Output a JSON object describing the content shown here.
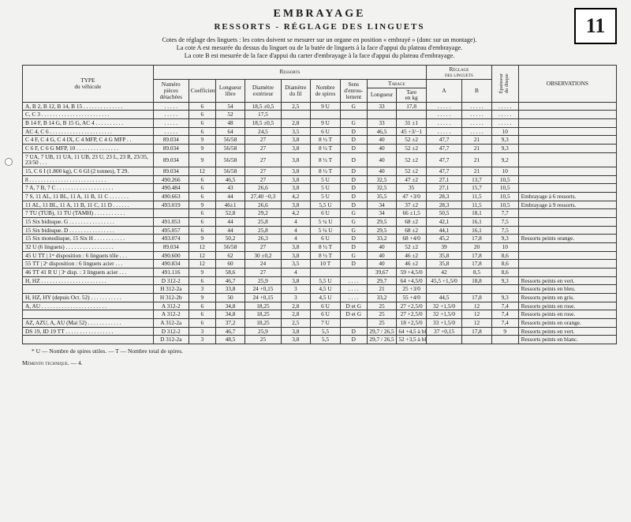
{
  "page_number": "11",
  "title": "EMBRAYAGE",
  "subtitle": "RESSORTS - RÉGLAGE DES LINGUETS",
  "intro_line1": "Cotes de réglage des linguets : les cotes doivent se mesurer sur un organe en position « embrayé » (donc sur un montage).",
  "intro_line2": "La cote A est mesurée du dessus du linguet ou de la butée de linguets à la face d'appui du plateau d'embrayage.",
  "intro_line3": "La cote B est mesurée de la face d'appui du carter d'embrayage à la face d'appui du plateau d'embrayage.",
  "footnote": "* U — Nombre de spires utiles. — T — Nombre total de spires.",
  "memento": "Mémento technique. — 4.",
  "head": {
    "type": "TYPE\ndu véhicule",
    "ressorts": "Ressorts",
    "reglage": "Réglage\ndes linguets",
    "epaisseur": "Épaisseur\ndu disque",
    "obs": "OBSERVATIONS",
    "numero": "Numéro\npièces\ndétachées",
    "coeff": "Coefficient",
    "longueur": "Longueur\nlibre",
    "diam_ext": "Diamètre\nextérieur",
    "diam_fil": "Diamètre\ndu fil",
    "spires": "Nombre\nde spires",
    "sens": "Sens\nd'enrou-\nlement",
    "tarage": "Tarage",
    "tar_long": "Longueur",
    "tar_tare": "Tare\nen kg",
    "a": "A",
    "b": "B"
  },
  "rows": [
    {
      "type": "A, B 2, B 12, B 14, B 15 . . . . . . . . . . . . . .",
      "num": ". . . . .",
      "coef": "6",
      "long": "54",
      "dext": "18,5 ±0,5",
      "dfil": "2,5",
      "spir": "9 U",
      "sens": "G",
      "tl": "33",
      "tt": "17,8",
      "a": ". . . . .",
      "b": ". . . . .",
      "ep": ". . . . .",
      "obs": ""
    },
    {
      "type": "C, C 3 . . . . . . . . . . . . . . . . . . . . . . . .",
      "num": ". . . . .",
      "coef": "6",
      "long": "52",
      "dext": "17,5",
      "dfil": "",
      "spir": "",
      "sens": "",
      "tl": "",
      "tt": "",
      "a": ". . . . .",
      "b": ". . . . .",
      "ep": ". . . . .",
      "obs": ""
    },
    {
      "type": "B 14 F, B 14 G, B 15 G, AC 4 . . . . . . . . . .",
      "num": ". . . . .",
      "coef": "6",
      "long": "48",
      "dext": "18,5 ±0,5",
      "dfil": "2,8",
      "spir": "9 U",
      "sens": "G",
      "tl": "33",
      "tt": "31 ±1",
      "a": ". . . . .",
      "b": ". . . . .",
      "ep": ". . . . .",
      "obs": ""
    },
    {
      "type": "AC 4, C 6 . . . . . . . . . . . . . . . . . . . . . .",
      "num": ". . . . .",
      "coef": "6",
      "long": "64",
      "dext": "24,5",
      "dfil": "3,5",
      "spir": "6 U",
      "sens": "D",
      "tl": "46,5",
      "tt": "45 +3/−1",
      "a": ". . . . .",
      "b": ". . . . .",
      "ep": "10",
      "obs": ""
    },
    {
      "type": "C 4 F, C 4 G, C 4 IX, C 4 MFP, C 4 G MFP . .",
      "num": "89.034",
      "coef": "9",
      "long": "56/58",
      "dext": "27",
      "dfil": "3,8",
      "spir": "8 ½ T",
      "sens": "D",
      "tl": "40",
      "tt": "52 ±2",
      "a": "47,7",
      "b": "21",
      "ep": "9,3",
      "obs": ""
    },
    {
      "type": "C 6 F, C 6 G MFP, 10 . . . . . . . . . . . . . . .",
      "num": "89.034",
      "coef": "9",
      "long": "56/58",
      "dext": "27",
      "dfil": "3,8",
      "spir": "8 ½ T",
      "sens": "D",
      "tl": "40",
      "tt": "52 ±2",
      "a": "47,7",
      "b": "21",
      "ep": "9,3",
      "obs": ""
    },
    {
      "type": "7 UA, 7 UB, 11 UA, 11 UB, 23 U, 23 L, 23 R, 23/35, 23/50 . . .",
      "num": "89.034",
      "coef": "9",
      "long": "56/58",
      "dext": "27",
      "dfil": "3,8",
      "spir": "8 ½ T",
      "sens": "D",
      "tl": "40",
      "tt": "52 ±2",
      "a": "47,7",
      "b": "21",
      "ep": "9,2",
      "obs": ""
    },
    {
      "type": "15, C 6 I (1.800 kg), C 6 GI (2 tonnes), T 29.",
      "num": "89.034",
      "coef": "12",
      "long": "56/58",
      "dext": "27",
      "dfil": "3,8",
      "spir": "8 ½ T",
      "sens": "D",
      "tl": "40",
      "tt": "52 ±2",
      "a": "47,7",
      "b": "21",
      "ep": "10",
      "obs": ""
    },
    {
      "type": "8 . . . . . . . . . . . . . . . . . . . . . . . . . . .",
      "num": "490.266",
      "coef": "6",
      "long": "46,5",
      "dext": "27",
      "dfil": "3,8",
      "spir": "5 U",
      "sens": "D",
      "tl": "32,5",
      "tt": "47 ±2",
      "a": "27,1",
      "b": "13,7",
      "ep": "10,5",
      "obs": ""
    },
    {
      "type": "7 A, 7 B, 7 C . . . . . . . . . . . . . . . . . . . .",
      "num": "490.484",
      "coef": "6",
      "long": "43",
      "dext": "26,6",
      "dfil": "3,8",
      "spir": "5 U",
      "sens": "D",
      "tl": "32,5",
      "tt": "35",
      "a": "27,1",
      "b": "15,7",
      "ep": "10,5",
      "obs": ""
    },
    {
      "type": "7 S, 11 AL, 11 BL, 11 A, 11 B, 11 C . . . . . . .",
      "num": "490.663",
      "coef": "6",
      "long": "44",
      "dext": "27,40 −0,3",
      "dfil": "4,2",
      "spir": "5 U",
      "sens": "D",
      "tl": "35,5",
      "tt": "47 +3/0",
      "a": "28,3",
      "b": "11,5",
      "ep": "10,5",
      "obs": "Embrayage à 6 ressorts."
    },
    {
      "type": "11 AL, 11 BL, 11 A, 11 B, 11 C, 11 D . . . . . .",
      "num": "493.019",
      "coef": "9",
      "long": "46±1",
      "dext": "26,6",
      "dfil": "3,8",
      "spir": "5,5 U",
      "sens": "D",
      "tl": "34",
      "tt": "37 ±2",
      "a": "28,3",
      "b": "11,5",
      "ep": "10,5",
      "obs": "Embrayage à 9 ressorts."
    },
    {
      "type": "7 TU (TUB), 11 TU (TAMH) . . . . . . . . . . .",
      "num": "",
      "coef": "6",
      "long": "52,8",
      "dext": "29,2",
      "dfil": "4,2",
      "spir": "6 U",
      "sens": "G",
      "tl": "34",
      "tt": "66 ±1,5",
      "a": "50,5",
      "b": "18,1",
      "ep": "7,7",
      "obs": ""
    },
    {
      "type": "15 Six bidisque. G . . . . . . . . . . . . . . . .",
      "num": "491.053",
      "coef": "6",
      "long": "44",
      "dext": "25,8",
      "dfil": "4",
      "spir": "5 ¼ U",
      "sens": "G",
      "tl": "29,5",
      "tt": "68 ±2",
      "a": "42,1",
      "b": "16,1",
      "ep": "7,5",
      "obs": ""
    },
    {
      "type": "15 Six bidisque. D . . . . . . . . . . . . . . . .",
      "num": "495.057",
      "coef": "6",
      "long": "44",
      "dext": "25,8",
      "dfil": "4",
      "spir": "5 ¼ U",
      "sens": "G",
      "tl": "29,5",
      "tt": "68 ±2",
      "a": "44,1",
      "b": "16,1",
      "ep": "7,5",
      "obs": ""
    },
    {
      "type": "15 Six monodisque, 15 Six H . . . . . . . . . . .",
      "num": "493.074",
      "coef": "9",
      "long": "50,2",
      "dext": "26,3",
      "dfil": "4",
      "spir": "6 U",
      "sens": "D",
      "tl": "33,2",
      "tt": "68 +4/0",
      "a": "45,2",
      "b": "17,8",
      "ep": "9,3",
      "obs": "Ressorts peints orange."
    },
    {
      "type": "32 U (6 linguets) . . . . . . . . . . . . . . . . .",
      "num": "89.034",
      "coef": "12",
      "long": "56/58",
      "dext": "27",
      "dfil": "3,8",
      "spir": "8 ½ T",
      "sens": "D",
      "tl": "40",
      "tt": "52 ±2",
      "a": "39",
      "b": "20",
      "ep": "10",
      "obs": ""
    },
    {
      "type": "45 U TT | 1ʳᵉ disposition : 6 linguets tôle . . .",
      "num": "490.600",
      "coef": "12",
      "long": "62",
      "dext": "30 ±0,2",
      "dfil": "3,8",
      "spir": "8 ½ T",
      "sens": "G",
      "tl": "40",
      "tt": "46 ±2",
      "a": "35,8",
      "b": "17,8",
      "ep": "8,6",
      "obs": ""
    },
    {
      "type": "55 TT | 2ᵉ disposition : 6 linguets acier . . .",
      "num": "490.834",
      "coef": "12",
      "long": "60",
      "dext": "24",
      "dfil": "3,5",
      "spir": "10 T",
      "sens": "D",
      "tl": "40",
      "tt": "46 ±2",
      "a": "35,8",
      "b": "17,8",
      "ep": "8,6",
      "obs": ""
    },
    {
      "type": "46 TT 41 R U | 3ᵉ disp. : 3 linguets acier . . .",
      "num": "491.116",
      "coef": "9",
      "long": "58,6",
      "dext": "27",
      "dfil": "4",
      "spir": "",
      "sens": "",
      "tl": "39,67",
      "tt": "59 +4,5/0",
      "a": "42",
      "b": "8,5",
      "ep": "8,6",
      "obs": ""
    },
    {
      "type": "H, HZ . . . . . . . . . . . . . . . . . . . . . . .",
      "num": "D 312-2",
      "coef": "6",
      "long": "46,7",
      "dext": "25,9",
      "dfil": "3,8",
      "spir": "5,5 U",
      "sens": ". . . .",
      "tl": "29,7",
      "tt": "64 +4,5/0",
      "a": "45,5 +1,5/0",
      "b": "18,8",
      "ep": "9,3",
      "obs": "Ressorts peints en vert."
    },
    {
      "type": "",
      "num": "H 312-2a",
      "coef": "3",
      "long": "33,8",
      "dext": "24 +0,15",
      "dfil": "3",
      "spir": "4,5 U",
      "sens": ". . . .",
      "tl": "21",
      "tt": "25 +3/0",
      "a": "",
      "b": "",
      "ep": "",
      "obs": "Ressorts peints en bleu."
    },
    {
      "type": "H, HZ, HY (depuis Oct. 52) . . . . . . . . . . .",
      "num": "H 312-2b",
      "coef": "9",
      "long": "50",
      "dext": "24 +0,15",
      "dfil": "3",
      "spir": "4,5 U",
      "sens": ". . . .",
      "tl": "33,2",
      "tt": "55 +4/0",
      "a": "44,5",
      "b": "17,8",
      "ep": "9,3",
      "obs": "Ressorts peints en gris."
    },
    {
      "type": "A, AU . . . . . . . . . . . . . . . . . . . . . . .",
      "num": "A 312-2",
      "coef": "6",
      "long": "34,8",
      "dext": "18,25",
      "dfil": "2,8",
      "spir": "6 U",
      "sens": "D et G",
      "tl": "25",
      "tt": "27 +2,5/0",
      "a": "32 +1,5/0",
      "b": "12",
      "ep": "7,4",
      "obs": "Ressorts peints en rose."
    },
    {
      "type": "",
      "num": "A 312-2",
      "coef": "6",
      "long": "34,8",
      "dext": "18,25",
      "dfil": "2,8",
      "spir": "6 U",
      "sens": "D et G",
      "tl": "25",
      "tt": "27 +2,5/0",
      "a": "32 +1,5/0",
      "b": "12",
      "ep": "7,4",
      "obs": "Ressorts peints en rose."
    },
    {
      "type": "AZ, AZU, A, AU (Mai 52) . . . . . . . . . . . .",
      "num": "A 312-2a",
      "coef": "6",
      "long": "37,2",
      "dext": "18,25",
      "dfil": "2,5",
      "spir": "7 U",
      "sens": "",
      "tl": "25",
      "tt": "18 +2,5/0",
      "a": "33 +1,5/0",
      "b": "12",
      "ep": "7,4",
      "obs": "Ressorts peints en orange."
    },
    {
      "type": "DS 19, ID 19 TT . . . . . . . . . . . . . . . . .",
      "num": "D 312-2",
      "coef": "3",
      "long": "46,7",
      "dext": "25,9",
      "dfil": "3,8",
      "spir": "5,5",
      "sens": "D",
      "tl": "29,7 / 26,5",
      "tt": "64 +4,5 à bloc",
      "a": "37 +0,15",
      "b": "17,8",
      "ep": "9",
      "obs": "Ressorts peints en vert."
    },
    {
      "type": "",
      "num": "D 312-2a",
      "coef": "3",
      "long": "48,5",
      "dext": "25",
      "dfil": "3,8",
      "spir": "5,5",
      "sens": "D",
      "tl": "29,7 / 26,5",
      "tt": "52 +3,5 à bloc",
      "a": "",
      "b": "",
      "ep": "",
      "obs": "Ressorts peints en blanc."
    }
  ]
}
